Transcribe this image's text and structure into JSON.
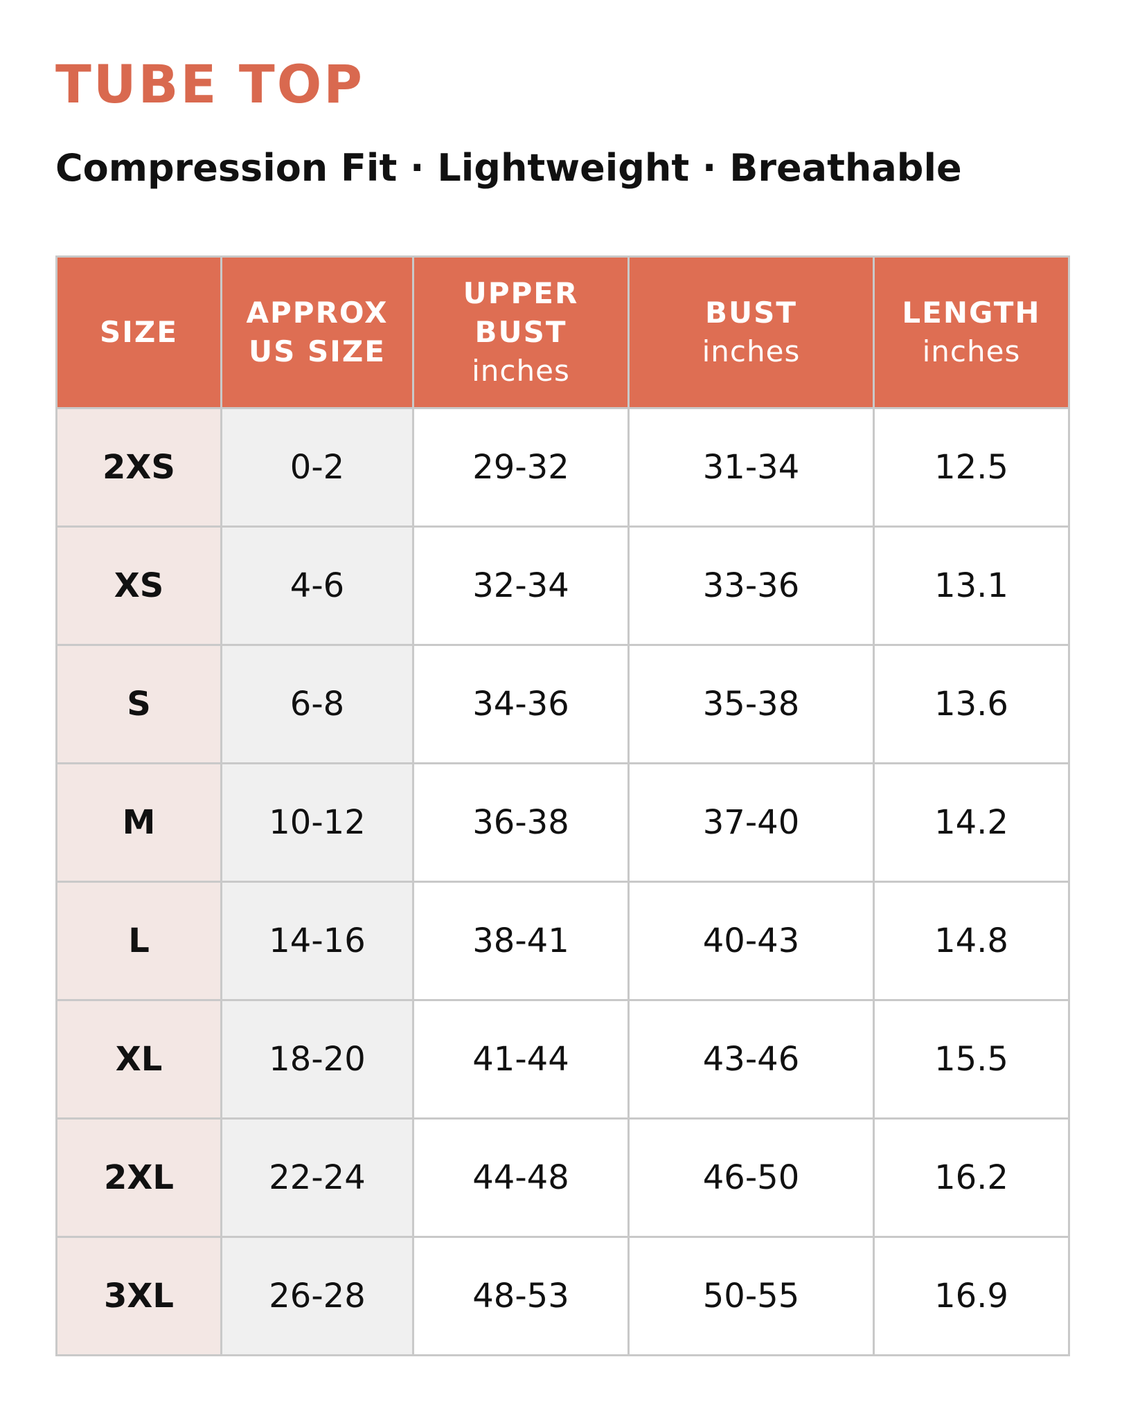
{
  "header": {
    "title": "TUBE TOP",
    "subtitle": "Compression Fit · Lightweight · Breathable"
  },
  "table": {
    "columns": [
      {
        "lines": [
          "SIZE"
        ]
      },
      {
        "lines": [
          "APPROX",
          "US SIZE"
        ]
      },
      {
        "lines": [
          "UPPER",
          "BUST"
        ],
        "unit": "inches"
      },
      {
        "lines": [
          "BUST"
        ],
        "unit": "inches"
      },
      {
        "lines": [
          "LENGTH"
        ],
        "unit": "inches"
      }
    ],
    "rows": [
      [
        "2XS",
        "0-2",
        "29-32",
        "31-34",
        12.5
      ],
      [
        "XS",
        "4-6",
        "32-34",
        "33-36",
        13.1
      ],
      [
        "S",
        "6-8",
        "34-36",
        "35-38",
        13.6
      ],
      [
        "M",
        "10-12",
        "36-38",
        "37-40",
        14.2
      ],
      [
        "L",
        "14-16",
        "38-41",
        "40-43",
        14.8
      ],
      [
        "XL",
        "18-20",
        "41-44",
        "43-46",
        15.5
      ],
      [
        "2XL",
        "22-24",
        "44-48",
        "46-50",
        16.2
      ],
      [
        "3XL",
        "26-28",
        "48-53",
        "50-55",
        16.9
      ]
    ]
  }
}
